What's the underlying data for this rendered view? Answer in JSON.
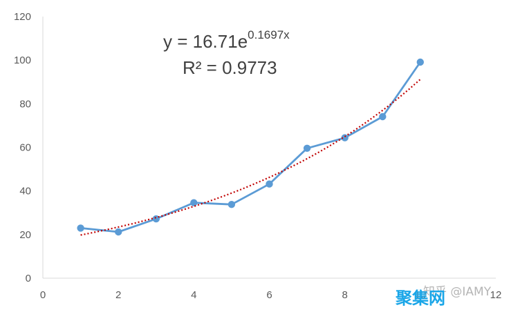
{
  "chart_data": {
    "type": "scatter",
    "xlim": [
      0,
      12
    ],
    "ylim": [
      0,
      120
    ],
    "x_ticks": [
      "0",
      "2",
      "4",
      "6",
      "8",
      "10",
      "12"
    ],
    "y_ticks": [
      "0",
      "20",
      "40",
      "60",
      "80",
      "100",
      "120"
    ],
    "grid": false,
    "series": [
      {
        "x": [
          1,
          2,
          3,
          4,
          5,
          6,
          7,
          8,
          9,
          10
        ],
        "y": [
          23,
          21.2,
          27.2,
          34.6,
          33.8,
          43.2,
          59.6,
          64.4,
          74.1,
          99.1
        ],
        "color": "#5b9bd5",
        "style": "line+markers"
      }
    ],
    "trendline": {
      "type": "exponential",
      "a": 16.71,
      "b": 0.1697,
      "r2": 0.9773,
      "x_range": [
        1,
        10
      ],
      "color": "#c00000",
      "style": "dotted"
    },
    "annotations": {
      "equation_main": "y = 16.71e",
      "equation_exp": "0.1697x",
      "r_squared": "R² = 0.9773"
    }
  },
  "watermark": {
    "text": "知乎 @IAMY",
    "logo": "聚集网"
  }
}
